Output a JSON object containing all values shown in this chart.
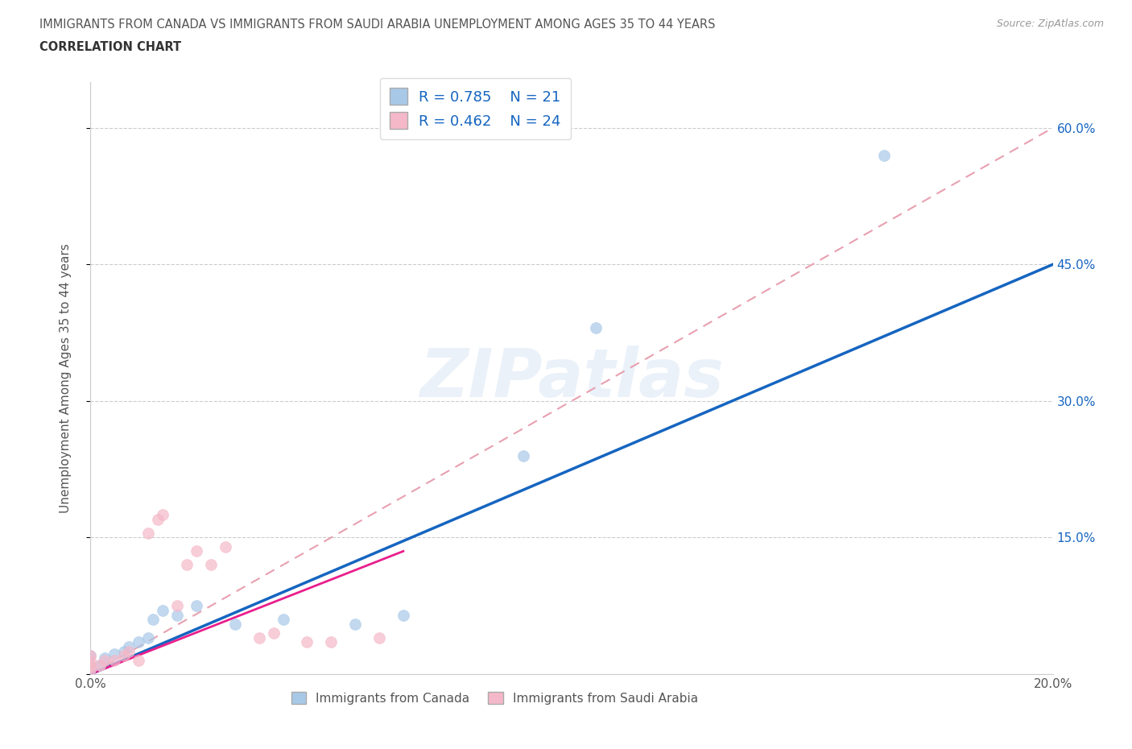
{
  "title_line1": "IMMIGRANTS FROM CANADA VS IMMIGRANTS FROM SAUDI ARABIA UNEMPLOYMENT AMONG AGES 35 TO 44 YEARS",
  "title_line2": "CORRELATION CHART",
  "source_text": "Source: ZipAtlas.com",
  "ylabel": "Unemployment Among Ages 35 to 44 years",
  "legend_label1": "Immigrants from Canada",
  "legend_label2": "Immigrants from Saudi Arabia",
  "R1": 0.785,
  "N1": 21,
  "R2": 0.462,
  "N2": 24,
  "color1": "#a8c8e8",
  "color2": "#f4b8c8",
  "trendline1_color": "#1565C0",
  "trendline2_color": "#e91e8c",
  "trendline_dashed_color": "#e8a0b0",
  "xlim": [
    0.0,
    0.2
  ],
  "ylim": [
    0.0,
    0.65
  ],
  "ytick_positions": [
    0.0,
    0.15,
    0.3,
    0.45,
    0.6
  ],
  "ytick_labels": [
    "",
    "15.0%",
    "30.0%",
    "45.0%",
    "60.0%"
  ],
  "watermark": "ZIPatlas",
  "canada_x": [
    0.0,
    0.0,
    0.0,
    0.002,
    0.003,
    0.005,
    0.007,
    0.008,
    0.01,
    0.012,
    0.013,
    0.015,
    0.018,
    0.022,
    0.03,
    0.04,
    0.055,
    0.065,
    0.09,
    0.105,
    0.165
  ],
  "canada_y": [
    0.005,
    0.01,
    0.02,
    0.01,
    0.018,
    0.022,
    0.025,
    0.03,
    0.035,
    0.04,
    0.06,
    0.07,
    0.065,
    0.075,
    0.055,
    0.06,
    0.055,
    0.065,
    0.24,
    0.38,
    0.57
  ],
  "saudi_x": [
    0.0,
    0.0,
    0.0,
    0.0,
    0.0,
    0.002,
    0.003,
    0.005,
    0.007,
    0.008,
    0.01,
    0.012,
    0.014,
    0.015,
    0.018,
    0.02,
    0.022,
    0.025,
    0.028,
    0.035,
    0.038,
    0.045,
    0.05,
    0.06
  ],
  "saudi_y": [
    0.005,
    0.008,
    0.01,
    0.015,
    0.02,
    0.01,
    0.015,
    0.015,
    0.02,
    0.025,
    0.015,
    0.155,
    0.17,
    0.175,
    0.075,
    0.12,
    0.135,
    0.12,
    0.14,
    0.04,
    0.045,
    0.035,
    0.035,
    0.04
  ],
  "canada_trend_x0": 0.0,
  "canada_trend_y0": 0.0,
  "canada_trend_x1": 0.2,
  "canada_trend_y1": 0.45,
  "saudi_trend_x0": 0.0,
  "saudi_trend_y0": 0.0,
  "saudi_trend_x1": 0.065,
  "saudi_trend_y1": 0.135,
  "dashed_trend_x0": 0.0,
  "dashed_trend_y0": 0.0,
  "dashed_trend_x1": 0.2,
  "dashed_trend_y1": 0.6
}
